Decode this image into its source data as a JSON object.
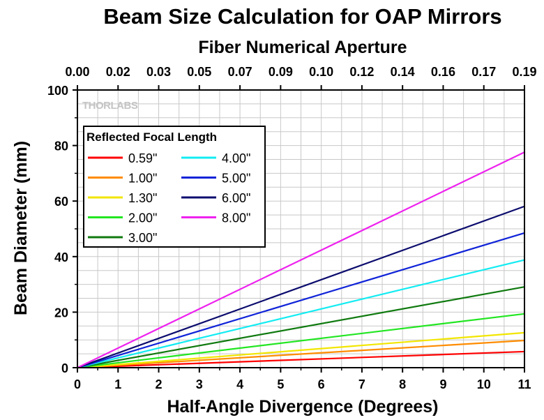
{
  "chart_data": {
    "type": "line",
    "title": "Beam Size Calculation for OAP Mirrors",
    "xlabel": "Half-Angle Divergence (Degrees)",
    "ylabel": "Beam Diameter (mm)",
    "x2label": "Fiber Numerical Aperture",
    "xlim": [
      0,
      11
    ],
    "ylim": [
      0,
      100
    ],
    "x_ticks": [
      "0",
      "1",
      "2",
      "3",
      "4",
      "5",
      "6",
      "7",
      "8",
      "9",
      "10",
      "11"
    ],
    "y_ticks": [
      "0",
      "20",
      "40",
      "60",
      "80",
      "100"
    ],
    "x2_ticks": [
      "0.00",
      "0.02",
      "0.03",
      "0.05",
      "0.07",
      "0.09",
      "0.10",
      "0.12",
      "0.14",
      "0.16",
      "0.17",
      "0.19"
    ],
    "grid": true,
    "legend_title": "Reflected Focal Length",
    "legend_position": "top-left",
    "watermark": "THORLABS",
    "series": [
      {
        "name": "0.59\"",
        "color": "#ff0000",
        "x": [
          0,
          11
        ],
        "y": [
          0,
          5.8
        ]
      },
      {
        "name": "1.00\"",
        "color": "#ff8c00",
        "x": [
          0,
          11
        ],
        "y": [
          0,
          9.8
        ]
      },
      {
        "name": "1.30\"",
        "color": "#f2e600",
        "x": [
          0,
          11
        ],
        "y": [
          0,
          12.6
        ]
      },
      {
        "name": "2.00\"",
        "color": "#22e622",
        "x": [
          0,
          11
        ],
        "y": [
          0,
          19.4
        ]
      },
      {
        "name": "3.00\"",
        "color": "#0f7a0f",
        "x": [
          0,
          11
        ],
        "y": [
          0,
          29.1
        ]
      },
      {
        "name": "4.00\"",
        "color": "#12ecf2",
        "x": [
          0,
          11
        ],
        "y": [
          0,
          38.8
        ]
      },
      {
        "name": "5.00\"",
        "color": "#1024d8",
        "x": [
          0,
          11
        ],
        "y": [
          0,
          48.5
        ]
      },
      {
        "name": "6.00\"",
        "color": "#0c0c6e",
        "x": [
          0,
          11
        ],
        "y": [
          0,
          58.1
        ]
      },
      {
        "name": "8.00\"",
        "color": "#ee22ee",
        "x": [
          0,
          11
        ],
        "y": [
          0,
          77.6
        ]
      }
    ]
  }
}
